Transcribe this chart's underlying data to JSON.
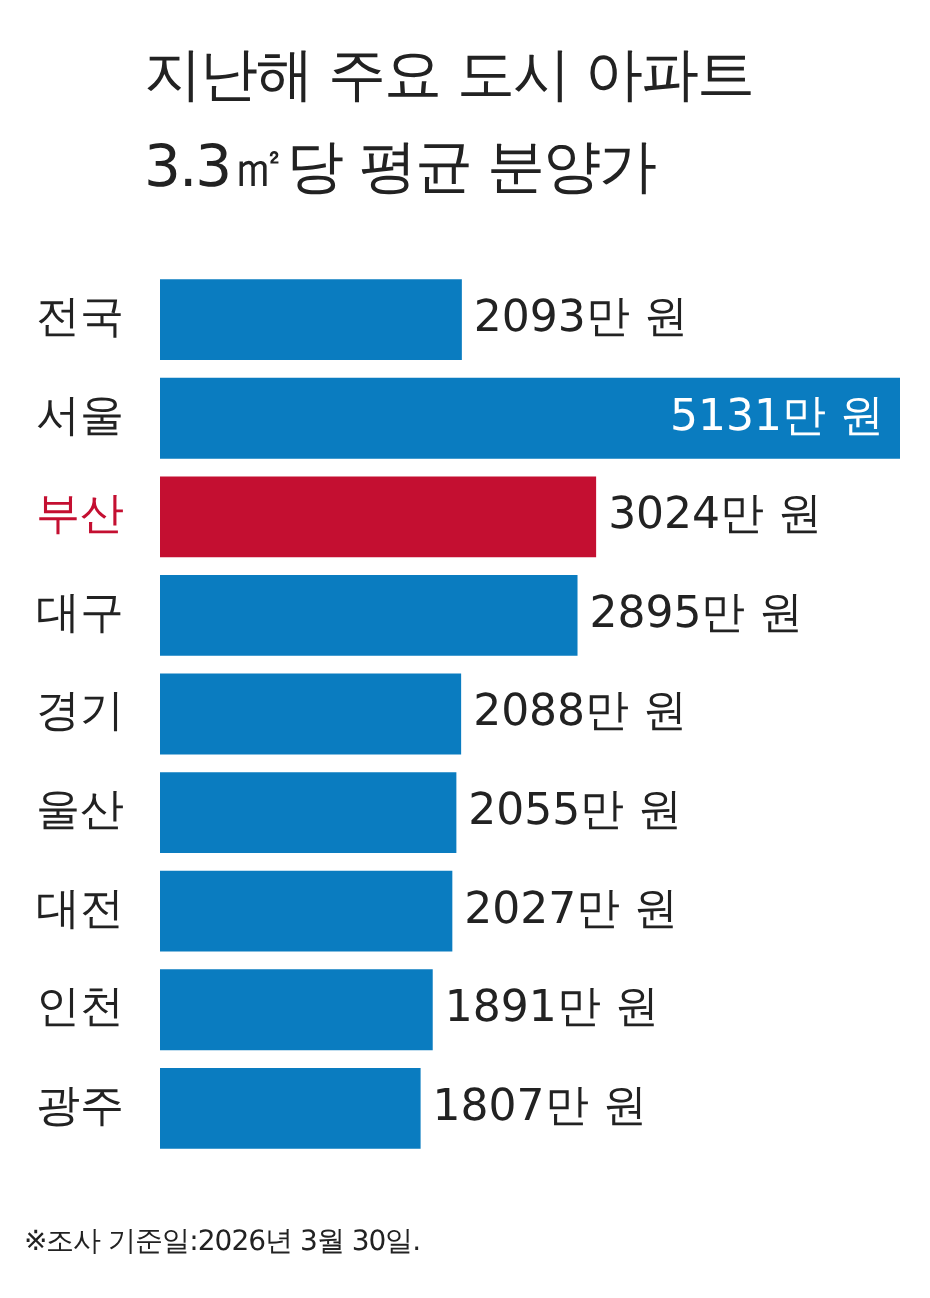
{
  "chart_data": {
    "type": "bar",
    "orientation": "horizontal",
    "title": "지난해 주요 도시 아파트\n3.3㎡당 평균 분양가",
    "categories": [
      "전국",
      "서울",
      "부산",
      "대구",
      "경기",
      "울산",
      "대전",
      "인천",
      "광주"
    ],
    "values": [
      2093,
      5131,
      3024,
      2895,
      2088,
      2055,
      2027,
      1891,
      1807
    ],
    "colors": [
      "#0a7cc0",
      "#0a7cc0",
      "#c40f31",
      "#0a7cc0",
      "#0a7cc0",
      "#0a7cc0",
      "#0a7cc0",
      "#0a7cc0",
      "#0a7cc0"
    ],
    "value_labels": [
      "2093만 원",
      "5131만 원",
      "3024만 원",
      "2895만 원",
      "2088만 원",
      "2055만 원",
      "2027만 원",
      "1891만 원",
      "1807만 원"
    ],
    "legend": false,
    "annotations": [
      "※조사 기준일:2026년 3월 30일."
    ]
  }
}
